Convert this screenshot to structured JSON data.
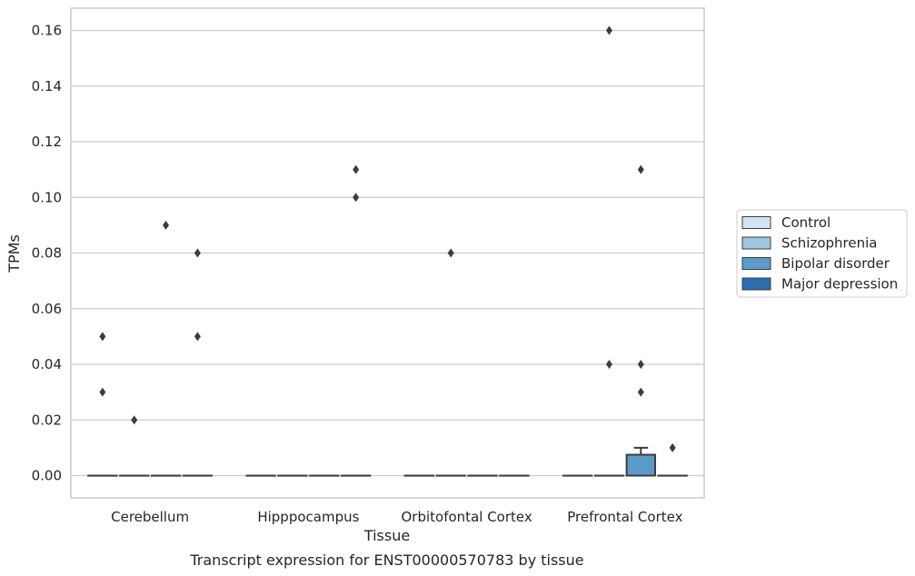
{
  "chart_data": {
    "type": "box",
    "title": "",
    "caption": "Transcript expression for ENST00000570783 by tissue",
    "xlabel": "Tissue",
    "ylabel": "TPMs",
    "ylim": [
      -0.008,
      0.168
    ],
    "yticks": [
      "0.00",
      "0.02",
      "0.04",
      "0.06",
      "0.08",
      "0.10",
      "0.12",
      "0.14",
      "0.16"
    ],
    "grid": "horizontal",
    "legend_position": "right",
    "categories": [
      "Cerebellum",
      "Hipppocampus",
      "Orbitofontal Cortex",
      "Prefrontal Cortex"
    ],
    "series": [
      {
        "name": "Control",
        "color": "#d4e3f2",
        "boxes": [
          {
            "q1": 0,
            "median": 0,
            "q3": 0,
            "whisker_low": 0,
            "whisker_high": 0,
            "outliers": [
              0.05,
              0.03
            ]
          },
          {
            "q1": 0,
            "median": 0,
            "q3": 0,
            "whisker_low": 0,
            "whisker_high": 0,
            "outliers": []
          },
          {
            "q1": 0,
            "median": 0,
            "q3": 0,
            "whisker_low": 0,
            "whisker_high": 0,
            "outliers": []
          },
          {
            "q1": 0,
            "median": 0,
            "q3": 0,
            "whisker_low": 0,
            "whisker_high": 0,
            "outliers": []
          }
        ]
      },
      {
        "name": "Schizophrenia",
        "color": "#9fc6df",
        "boxes": [
          {
            "q1": 0,
            "median": 0,
            "q3": 0,
            "whisker_low": 0,
            "whisker_high": 0,
            "outliers": [
              0.02
            ]
          },
          {
            "q1": 0,
            "median": 0,
            "q3": 0,
            "whisker_low": 0,
            "whisker_high": 0,
            "outliers": []
          },
          {
            "q1": 0,
            "median": 0,
            "q3": 0,
            "whisker_low": 0,
            "whisker_high": 0,
            "outliers": [
              0.08
            ]
          },
          {
            "q1": 0,
            "median": 0,
            "q3": 0,
            "whisker_low": 0,
            "whisker_high": 0,
            "outliers": [
              0.16,
              0.04
            ]
          }
        ]
      },
      {
        "name": "Bipolar disorder",
        "color": "#5a9bc9",
        "boxes": [
          {
            "q1": 0,
            "median": 0,
            "q3": 0,
            "whisker_low": 0,
            "whisker_high": 0,
            "outliers": [
              0.09
            ]
          },
          {
            "q1": 0,
            "median": 0,
            "q3": 0,
            "whisker_low": 0,
            "whisker_high": 0,
            "outliers": []
          },
          {
            "q1": 0,
            "median": 0,
            "q3": 0,
            "whisker_low": 0,
            "whisker_high": 0,
            "outliers": []
          },
          {
            "q1": 0,
            "median": 0,
            "q3": 0.0075,
            "whisker_low": 0,
            "whisker_high": 0.01,
            "outliers": [
              0.11,
              0.04,
              0.03
            ]
          }
        ]
      },
      {
        "name": "Major depression",
        "color": "#2c6fad",
        "boxes": [
          {
            "q1": 0,
            "median": 0,
            "q3": 0,
            "whisker_low": 0,
            "whisker_high": 0,
            "outliers": [
              0.08,
              0.05
            ]
          },
          {
            "q1": 0,
            "median": 0,
            "q3": 0,
            "whisker_low": 0,
            "whisker_high": 0,
            "outliers": [
              0.11,
              0.1
            ]
          },
          {
            "q1": 0,
            "median": 0,
            "q3": 0,
            "whisker_low": 0,
            "whisker_high": 0,
            "outliers": []
          },
          {
            "q1": 0,
            "median": 0,
            "q3": 0,
            "whisker_low": 0,
            "whisker_high": 0,
            "outliers": [
              0.01
            ]
          }
        ]
      }
    ]
  }
}
